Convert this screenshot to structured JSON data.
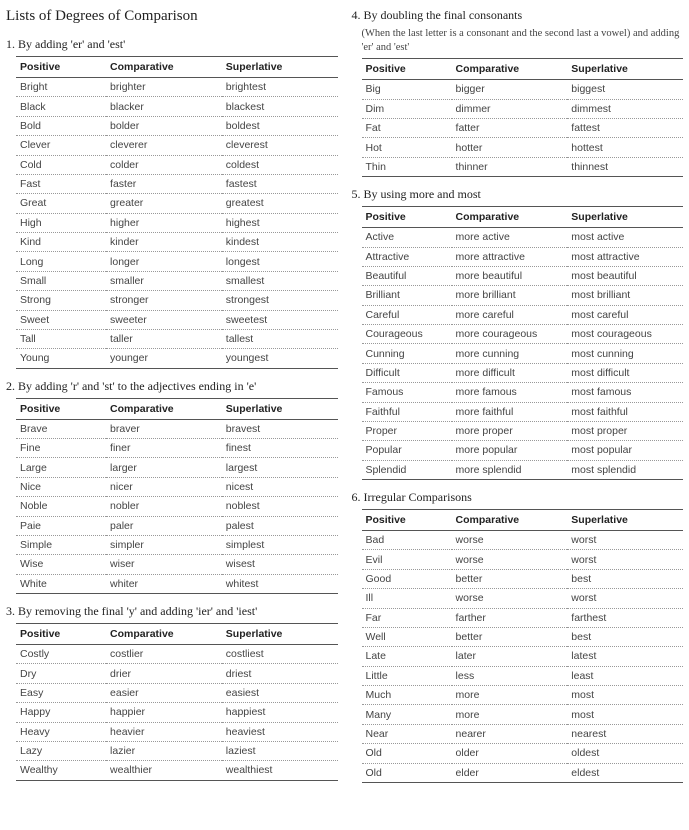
{
  "main_title": "Lists of Degrees of Comparison",
  "headers": {
    "pos": "Positive",
    "comp": "Comparative",
    "sup": "Superlative"
  },
  "sections": {
    "s1": {
      "title": "1. By adding 'er' and 'est'",
      "rows": [
        [
          "Bright",
          "brighter",
          "brightest"
        ],
        [
          "Black",
          "blacker",
          "blackest"
        ],
        [
          "Bold",
          "bolder",
          "boldest"
        ],
        [
          "Clever",
          "cleverer",
          "cleverest"
        ],
        [
          "Cold",
          "colder",
          "coldest"
        ],
        [
          "Fast",
          "faster",
          "fastest"
        ],
        [
          "Great",
          "greater",
          "greatest"
        ],
        [
          "High",
          "higher",
          "highest"
        ],
        [
          "Kind",
          "kinder",
          "kindest"
        ],
        [
          "Long",
          "longer",
          "longest"
        ],
        [
          "Small",
          "smaller",
          "smallest"
        ],
        [
          "Strong",
          "stronger",
          "strongest"
        ],
        [
          "Sweet",
          "sweeter",
          "sweetest"
        ],
        [
          "Tall",
          "taller",
          "tallest"
        ],
        [
          "Young",
          "younger",
          "youngest"
        ]
      ]
    },
    "s2": {
      "title": "2. By adding 'r' and 'st' to the adjectives ending in 'e'",
      "rows": [
        [
          "Brave",
          "braver",
          "bravest"
        ],
        [
          "Fine",
          "finer",
          "finest"
        ],
        [
          "Large",
          "larger",
          "largest"
        ],
        [
          "Nice",
          "nicer",
          "nicest"
        ],
        [
          "Noble",
          "nobler",
          "noblest"
        ],
        [
          "Paie",
          "paler",
          "palest"
        ],
        [
          "Simple",
          "simpler",
          "simplest"
        ],
        [
          "Wise",
          "wiser",
          "wisest"
        ],
        [
          "White",
          "whiter",
          "whitest"
        ]
      ]
    },
    "s3": {
      "title": "3. By removing the final 'y' and adding 'ier' and 'iest'",
      "rows": [
        [
          "Costly",
          "costlier",
          "costliest"
        ],
        [
          "Dry",
          "drier",
          "driest"
        ],
        [
          "Easy",
          "easier",
          "easiest"
        ],
        [
          "Happy",
          "happier",
          "happiest"
        ],
        [
          "Heavy",
          "heavier",
          "heaviest"
        ],
        [
          "Lazy",
          "lazier",
          "laziest"
        ],
        [
          "Wealthy",
          "wealthier",
          "wealthiest"
        ]
      ]
    },
    "s4": {
      "title": "4. By doubling the final consonants",
      "note": "(When the last letter is a consonant and the second last a vowel) and adding 'er' and 'est'",
      "rows": [
        [
          "Big",
          "bigger",
          "biggest"
        ],
        [
          "Dim",
          "dimmer",
          "dimmest"
        ],
        [
          "Fat",
          "fatter",
          "fattest"
        ],
        [
          "Hot",
          "hotter",
          "hottest"
        ],
        [
          "Thin",
          "thinner",
          "thinnest"
        ]
      ]
    },
    "s5": {
      "title": "5. By using more and most",
      "rows": [
        [
          "Active",
          "more active",
          "most active"
        ],
        [
          "Attractive",
          "more attractive",
          "most attractive"
        ],
        [
          "Beautiful",
          "more beautiful",
          "most beautiful"
        ],
        [
          "Brilliant",
          "more brilliant",
          "most brilliant"
        ],
        [
          "Careful",
          "more careful",
          "most careful"
        ],
        [
          "Courageous",
          "more courageous",
          "most courageous"
        ],
        [
          "Cunning",
          "more cunning",
          "most cunning"
        ],
        [
          "Difficult",
          "more difficult",
          "most difficult"
        ],
        [
          "Famous",
          "more famous",
          "most famous"
        ],
        [
          "Faithful",
          "more faithful",
          "most faithful"
        ],
        [
          "Proper",
          "more proper",
          "most proper"
        ],
        [
          "Popular",
          "more popular",
          "most popular"
        ],
        [
          "Splendid",
          "more splendid",
          "most splendid"
        ]
      ]
    },
    "s6": {
      "title": "6. Irregular Comparisons",
      "rows": [
        [
          "Bad",
          "worse",
          "worst"
        ],
        [
          "Evil",
          "worse",
          "worst"
        ],
        [
          "Good",
          "better",
          "best"
        ],
        [
          "Ill",
          "worse",
          "worst"
        ],
        [
          "Far",
          "farther",
          "farthest"
        ],
        [
          "Well",
          "better",
          "best"
        ],
        [
          "Late",
          "later",
          "latest"
        ],
        [
          "Little",
          "less",
          "least"
        ],
        [
          "Much",
          "more",
          "most"
        ],
        [
          "Many",
          "more",
          "most"
        ],
        [
          "Near",
          "nearer",
          "nearest"
        ],
        [
          "Old",
          "older",
          "oldest"
        ],
        [
          "Old",
          "elder",
          "eldest"
        ]
      ]
    }
  }
}
